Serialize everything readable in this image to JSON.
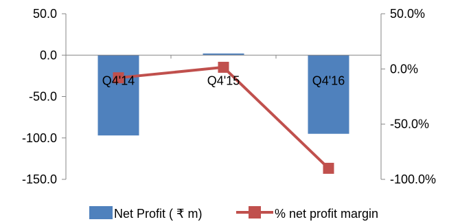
{
  "colors": {
    "bar": "#4f81bd",
    "line": "#c0504d",
    "axis": "#868686",
    "text": "#000000"
  },
  "chart_data": {
    "type": "bar",
    "categories": [
      "Q4'14",
      "Q4'15",
      "Q4'16"
    ],
    "series": [
      {
        "name": "Net Profit ( ₹ m)",
        "type": "bar",
        "axis": "left",
        "values": [
          -97,
          2,
          -95
        ]
      },
      {
        "name": "% net profit margin",
        "type": "line",
        "axis": "right",
        "values": [
          -8.0,
          1.5,
          -90.0
        ]
      }
    ],
    "y_left": {
      "range": [
        -150,
        50
      ],
      "ticks": [
        50,
        0,
        -50,
        -100,
        -150
      ],
      "tick_labels": [
        "50.0",
        "0.0",
        "-50.0",
        "-100.0",
        "-150.0"
      ]
    },
    "y_right": {
      "range": [
        -100,
        50
      ],
      "ticks": [
        50,
        0,
        -50,
        -100
      ],
      "tick_labels": [
        "50.0%",
        "0.0%",
        "-50.0%",
        "-100.0%"
      ]
    },
    "legend_position": "bottom",
    "grid": false
  }
}
